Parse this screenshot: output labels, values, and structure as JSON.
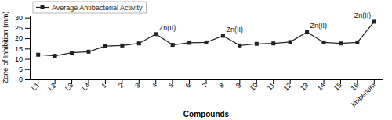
{
  "chart_data": {
    "type": "line",
    "categories": [
      "L1",
      "L2",
      "L3",
      "L4",
      "1",
      "2",
      "3",
      "4",
      "5",
      "6",
      "7",
      "8",
      "9",
      "10",
      "11",
      "12",
      "13",
      "14",
      "15",
      "16",
      "Imipenum"
    ],
    "series": [
      {
        "name": "Average Antibacterial Activity",
        "color": "#222222",
        "marker": "square",
        "values": [
          12.0,
          11.5,
          13.0,
          13.5,
          16.2,
          16.5,
          17.5,
          22.0,
          16.8,
          17.8,
          18.0,
          21.2,
          16.5,
          17.3,
          17.5,
          18.2,
          23.0,
          18.0,
          17.5,
          18.0,
          28.0
        ]
      }
    ],
    "annotations": [
      {
        "text": "Zn(II)",
        "x": "4"
      },
      {
        "text": "Zn(II)",
        "x": "8"
      },
      {
        "text": "Zn(II)",
        "x": "13"
      },
      {
        "text": "Zn(II)",
        "x": "Imipenum"
      }
    ],
    "xlabel": "Compounds",
    "ylabel": "Zone of Inhibition (mm)",
    "ylim": [
      0,
      31
    ],
    "yticks": [
      0,
      5,
      10,
      15,
      20,
      25,
      30
    ],
    "legend": "upper left"
  }
}
